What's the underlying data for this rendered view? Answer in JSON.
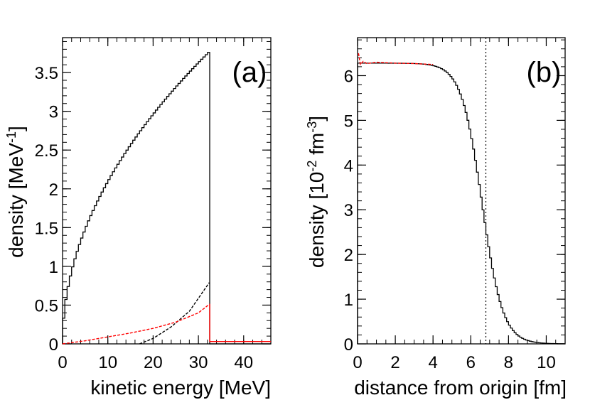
{
  "chart_data": [
    {
      "type": "line",
      "panel_label": "(a)",
      "xlabel": "kinetic energy [MeV]",
      "ylabel": "density [MeV",
      "ylabel_sup": "-1",
      "ylabel_close": "]",
      "xlim": [
        0,
        46
      ],
      "ylim": [
        0,
        3.95
      ],
      "x_ticks": [
        "0",
        "10",
        "20",
        "30",
        "40"
      ],
      "y_ticks": [
        "0",
        "0.5",
        "1",
        "1.5",
        "2",
        "2.5",
        "3",
        "3.5"
      ],
      "series": [
        {
          "name": "total (histogram)",
          "color": "#000000",
          "style": "solid-step",
          "formula": "0.662*sqrt(E) for E < 32.5 MeV, 0 above",
          "x_max": 32.5,
          "coef": 0.662,
          "bin_width": 0.5
        },
        {
          "name": "component (dashed)",
          "color": "#000000",
          "style": "dashed",
          "points": [
            [
              17.0,
              0.0
            ],
            [
              20.0,
              0.07
            ],
            [
              24.0,
              0.22
            ],
            [
              28.0,
              0.42
            ],
            [
              32.4,
              0.79
            ]
          ]
        },
        {
          "name": "model (red dashed)",
          "color": "#ff0000",
          "style": "dashed",
          "points": [
            [
              0,
              0.0
            ],
            [
              5,
              0.04
            ],
            [
              10,
              0.09
            ],
            [
              15,
              0.14
            ],
            [
              20,
              0.2
            ],
            [
              25,
              0.28
            ],
            [
              30,
              0.4
            ],
            [
              32.4,
              0.51
            ]
          ],
          "tail": [
            [
              32.5,
              0.03
            ],
            [
              46,
              0.03
            ]
          ]
        }
      ]
    },
    {
      "type": "line",
      "panel_label": "(b)",
      "xlabel": "distance from origin [fm]",
      "ylabel": "density [10",
      "ylabel_sup1": "-2",
      "ylabel_mid": " fm",
      "ylabel_sup2": "-3",
      "ylabel_close": "]",
      "xlim": [
        0,
        11
      ],
      "ylim": [
        0,
        6.85
      ],
      "x_ticks": [
        "0",
        "2",
        "4",
        "6",
        "8",
        "10"
      ],
      "y_ticks": [
        "0",
        "1",
        "2",
        "3",
        "4",
        "5",
        "6"
      ],
      "vline_x": 6.8,
      "series": [
        {
          "name": "density (histogram)",
          "color": "#000000",
          "style": "solid-step",
          "formula": "6.28 / (1 + exp((r - 6.6)/0.55))",
          "rho0": 6.28,
          "R": 6.6,
          "a": 0.55,
          "bin_width": 0.1
        },
        {
          "name": "model (red)",
          "color": "#ff0000",
          "style": "dashed",
          "points": [
            [
              0.05,
              6.5
            ],
            [
              0.15,
              6.25
            ],
            [
              0.3,
              6.32
            ],
            [
              0.5,
              6.27
            ],
            [
              1.0,
              6.3
            ],
            [
              2.0,
              6.28
            ],
            [
              3.0,
              6.27
            ],
            [
              4.0,
              6.25
            ]
          ]
        }
      ]
    }
  ]
}
